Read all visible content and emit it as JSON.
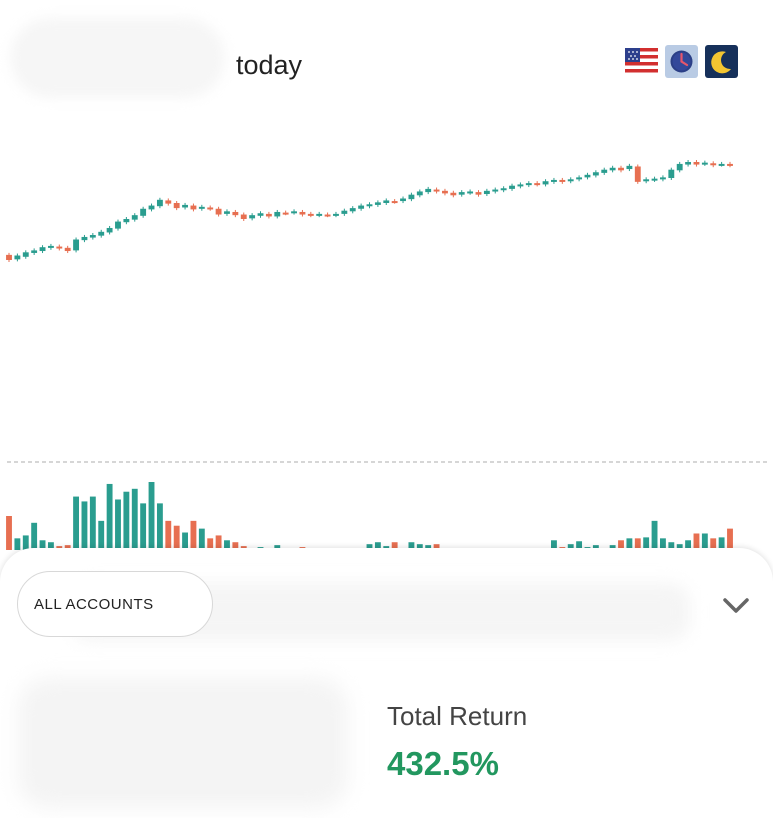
{
  "header": {
    "period_label": "today",
    "icons": [
      "us-flag-icon",
      "clock-icon",
      "moon-icon"
    ]
  },
  "colors": {
    "up": "#2a9d8f",
    "down": "#e76f51",
    "positive_text": "#22975f"
  },
  "chart_data": {
    "type": "candlestick",
    "grid": false,
    "candles": [
      {
        "o": 100.0,
        "c": 99.2
      },
      {
        "o": 99.3,
        "c": 99.9
      },
      {
        "o": 99.7,
        "c": 100.4
      },
      {
        "o": 100.3,
        "c": 100.7
      },
      {
        "o": 100.6,
        "c": 101.2
      },
      {
        "o": 101.1,
        "c": 101.4
      },
      {
        "o": 101.3,
        "c": 101.0
      },
      {
        "o": 101.1,
        "c": 100.6
      },
      {
        "o": 100.7,
        "c": 102.4
      },
      {
        "o": 102.3,
        "c": 102.8
      },
      {
        "o": 102.7,
        "c": 103.1
      },
      {
        "o": 103.0,
        "c": 103.6
      },
      {
        "o": 103.5,
        "c": 104.2
      },
      {
        "o": 104.1,
        "c": 105.2
      },
      {
        "o": 105.1,
        "c": 105.6
      },
      {
        "o": 105.5,
        "c": 106.2
      },
      {
        "o": 106.1,
        "c": 107.2
      },
      {
        "o": 107.1,
        "c": 107.7
      },
      {
        "o": 107.6,
        "c": 108.6
      },
      {
        "o": 108.5,
        "c": 108.0
      },
      {
        "o": 108.1,
        "c": 107.3
      },
      {
        "o": 107.4,
        "c": 107.8
      },
      {
        "o": 107.7,
        "c": 107.1
      },
      {
        "o": 107.2,
        "c": 107.5
      },
      {
        "o": 107.4,
        "c": 107.2
      },
      {
        "o": 107.2,
        "c": 106.3
      },
      {
        "o": 106.4,
        "c": 106.8
      },
      {
        "o": 106.7,
        "c": 106.2
      },
      {
        "o": 106.3,
        "c": 105.6
      },
      {
        "o": 105.7,
        "c": 106.2
      },
      {
        "o": 106.1,
        "c": 106.5
      },
      {
        "o": 106.4,
        "c": 106.0
      },
      {
        "o": 106.0,
        "c": 106.7
      },
      {
        "o": 106.6,
        "c": 106.5
      },
      {
        "o": 106.6,
        "c": 106.8
      },
      {
        "o": 106.7,
        "c": 106.3
      },
      {
        "o": 106.4,
        "c": 106.2
      },
      {
        "o": 106.2,
        "c": 106.4
      },
      {
        "o": 106.3,
        "c": 106.2
      },
      {
        "o": 106.2,
        "c": 106.4
      },
      {
        "o": 106.4,
        "c": 106.9
      },
      {
        "o": 106.8,
        "c": 107.3
      },
      {
        "o": 107.2,
        "c": 107.7
      },
      {
        "o": 107.6,
        "c": 107.9
      },
      {
        "o": 107.8,
        "c": 108.2
      },
      {
        "o": 108.1,
        "c": 108.5
      },
      {
        "o": 108.4,
        "c": 108.3
      },
      {
        "o": 108.4,
        "c": 108.8
      },
      {
        "o": 108.7,
        "c": 109.4
      },
      {
        "o": 109.3,
        "c": 109.9
      },
      {
        "o": 109.8,
        "c": 110.3
      },
      {
        "o": 110.2,
        "c": 109.9
      },
      {
        "o": 110.0,
        "c": 109.6
      },
      {
        "o": 109.7,
        "c": 109.3
      },
      {
        "o": 109.4,
        "c": 109.8
      },
      {
        "o": 109.7,
        "c": 109.9
      },
      {
        "o": 109.8,
        "c": 109.4
      },
      {
        "o": 109.5,
        "c": 110.0
      },
      {
        "o": 109.9,
        "c": 110.2
      },
      {
        "o": 110.1,
        "c": 110.4
      },
      {
        "o": 110.3,
        "c": 110.8
      },
      {
        "o": 110.7,
        "c": 111.0
      },
      {
        "o": 110.9,
        "c": 111.2
      },
      {
        "o": 111.2,
        "c": 111.0
      },
      {
        "o": 111.0,
        "c": 111.5
      },
      {
        "o": 111.4,
        "c": 111.7
      },
      {
        "o": 111.7,
        "c": 111.4
      },
      {
        "o": 111.5,
        "c": 111.8
      },
      {
        "o": 111.8,
        "c": 112.1
      },
      {
        "o": 112.1,
        "c": 112.5
      },
      {
        "o": 112.4,
        "c": 112.9
      },
      {
        "o": 112.8,
        "c": 113.3
      },
      {
        "o": 113.2,
        "c": 113.6
      },
      {
        "o": 113.6,
        "c": 113.2
      },
      {
        "o": 113.4,
        "c": 113.9
      },
      {
        "o": 113.8,
        "c": 111.4
      },
      {
        "o": 111.5,
        "c": 111.8
      },
      {
        "o": 111.7,
        "c": 111.9
      },
      {
        "o": 111.8,
        "c": 112.1
      },
      {
        "o": 112.0,
        "c": 113.3
      },
      {
        "o": 113.2,
        "c": 114.2
      },
      {
        "o": 114.1,
        "c": 114.5
      },
      {
        "o": 114.5,
        "c": 114.1
      },
      {
        "o": 114.2,
        "c": 114.4
      },
      {
        "o": 114.3,
        "c": 114.0
      },
      {
        "o": 114.1,
        "c": 114.2
      },
      {
        "o": 114.2,
        "c": 114.0
      }
    ],
    "volume": [
      0.35,
      0.12,
      0.15,
      0.28,
      0.1,
      0.08,
      0.04,
      0.05,
      0.55,
      0.5,
      0.55,
      0.3,
      0.68,
      0.52,
      0.6,
      0.63,
      0.48,
      0.7,
      0.48,
      0.3,
      0.25,
      0.18,
      0.3,
      0.22,
      0.12,
      0.15,
      0.1,
      0.08,
      0.04,
      0.02,
      0.03,
      0.02,
      0.05,
      0.02,
      0.02,
      0.03,
      0.01,
      0.02,
      0.0,
      0.0,
      0.0,
      0.0,
      0.0,
      0.06,
      0.08,
      0.04,
      0.08,
      0.02,
      0.08,
      0.06,
      0.05,
      0.06,
      0.02,
      0.02,
      0.02,
      0.0,
      0.0,
      0.0,
      0.0,
      0.0,
      0.0,
      0.0,
      0.0,
      0.0,
      0.0,
      0.1,
      0.03,
      0.06,
      0.09,
      0.03,
      0.05,
      0.02,
      0.05,
      0.1,
      0.12,
      0.12,
      0.13,
      0.3,
      0.12,
      0.08,
      0.06,
      0.1,
      0.17,
      0.17,
      0.12,
      0.13,
      0.22
    ]
  },
  "account": {
    "selector_label": "ALL ACCOUNTS"
  },
  "stats": {
    "total_return_label": "Total Return",
    "total_return_value": "432.5%"
  }
}
